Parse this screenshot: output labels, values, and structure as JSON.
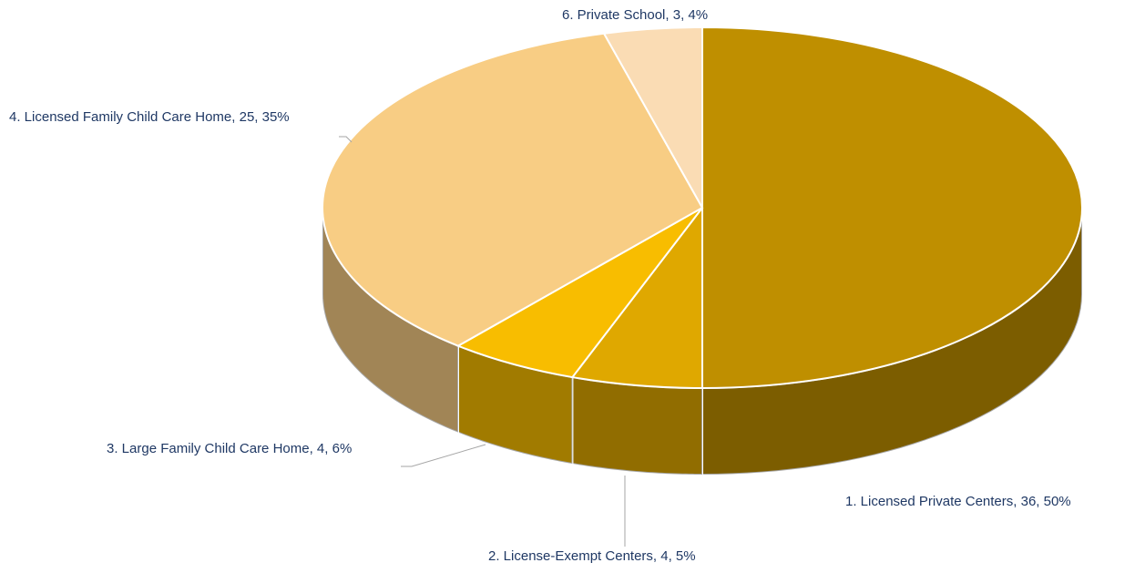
{
  "chart_data": {
    "type": "pie3d",
    "categories": [
      "1. Licensed Private Centers, 36, 50%",
      "2. License-Exempt Centers, 4, 5%",
      "3. Large Family Child Care Home, 4, 6%",
      "4. Licensed Family Child Care Home, 25, 35%",
      "6. Private School, 3, 4%"
    ],
    "values": [
      36,
      4,
      4,
      25,
      3
    ],
    "colors": [
      "#bf8f00",
      "#dfa800",
      "#f8bd00",
      "#f8cd84",
      "#fadcb4"
    ]
  }
}
